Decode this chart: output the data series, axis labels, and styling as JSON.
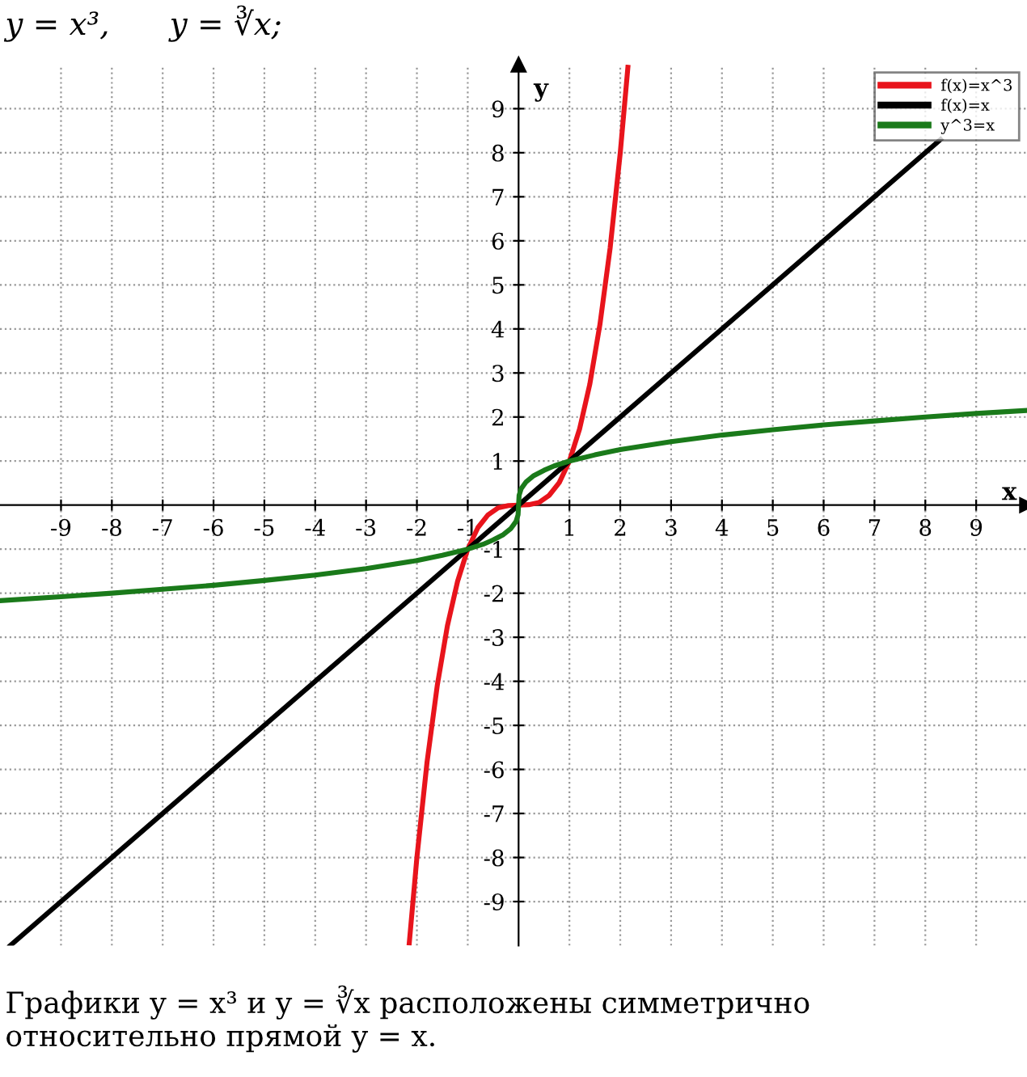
{
  "chart_data": {
    "type": "line",
    "title": "y = x³,      y = ∛x;",
    "xlabel": "x",
    "ylabel": "y",
    "xlim": [
      -10.2,
      10
    ],
    "ylim": [
      -10,
      10
    ],
    "xticks": [
      -9,
      -8,
      -7,
      -6,
      -5,
      -4,
      -3,
      -2,
      -1,
      1,
      2,
      3,
      4,
      5,
      6,
      7,
      8,
      9
    ],
    "yticks": [
      -9,
      -8,
      -7,
      -6,
      -5,
      -4,
      -3,
      -2,
      -1,
      1,
      2,
      3,
      4,
      5,
      6,
      7,
      8,
      9
    ],
    "grid": true,
    "legend": "top right",
    "marker": "none",
    "line_style": "solid",
    "series": [
      {
        "name": "f(x)=x^3",
        "color": "#e8141c",
        "x": [
          -2.15,
          -2,
          -1.8,
          -1.6,
          -1.4,
          -1.2,
          -1,
          -0.8,
          -0.6,
          -0.4,
          -0.2,
          0,
          0.2,
          0.4,
          0.6,
          0.8,
          1,
          1.2,
          1.4,
          1.6,
          1.8,
          2,
          2.15
        ],
        "values": [
          -9.94,
          -8,
          -5.83,
          -4.1,
          -2.74,
          -1.73,
          -1,
          -0.51,
          -0.22,
          -0.06,
          -0.01,
          0,
          0.01,
          0.06,
          0.22,
          0.51,
          1,
          1.73,
          2.74,
          4.1,
          5.83,
          8,
          9.94
        ]
      },
      {
        "name": "f(x)=x",
        "color": "#000000",
        "x": [
          -10,
          8.3
        ],
        "values": [
          -10,
          8.3
        ]
      },
      {
        "name": "y^3=x",
        "color": "#1a7a1a",
        "x": [
          -10.2,
          -9,
          -8,
          -7,
          -6,
          -5,
          -4,
          -3,
          -2,
          -1.5,
          -1,
          -0.7,
          -0.5,
          -0.3,
          -0.15,
          -0.05,
          -0.01,
          0,
          0.01,
          0.05,
          0.15,
          0.3,
          0.5,
          0.7,
          1,
          1.5,
          2,
          3,
          4,
          5,
          6,
          7,
          8,
          9,
          10
        ],
        "values": [
          -2.17,
          -2.08,
          -2,
          -1.91,
          -1.82,
          -1.71,
          -1.59,
          -1.44,
          -1.26,
          -1.14,
          -1,
          -0.89,
          -0.79,
          -0.67,
          -0.53,
          -0.37,
          -0.22,
          0,
          0.22,
          0.37,
          0.53,
          0.67,
          0.79,
          0.89,
          1,
          1.14,
          1.26,
          1.44,
          1.59,
          1.71,
          1.82,
          1.91,
          2,
          2.08,
          2.15
        ]
      }
    ],
    "annotations": [
      "Графики y = x³ и y = ∛x расположены симметрично относительно прямой y = x."
    ]
  }
}
